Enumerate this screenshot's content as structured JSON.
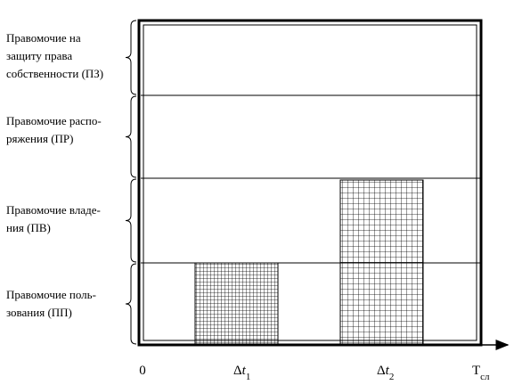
{
  "rows": [
    {
      "lines": [
        "Правомочие на",
        "защиту права",
        "собственности (ПЗ)"
      ]
    },
    {
      "lines": [
        "Правомочие распо-",
        "ряжения  (ПР)"
      ]
    },
    {
      "lines": [
        "Правомочие владе-",
        "ния (ПВ)"
      ]
    },
    {
      "lines": [
        "Правомочие поль-",
        "зования (ПП)"
      ]
    }
  ],
  "axis": {
    "origin": "0",
    "labels": [
      {
        "base": "Δ",
        "var": "t",
        "sub": "1"
      },
      {
        "base": "Δ",
        "var": "t",
        "sub": "2"
      }
    ],
    "end": {
      "base": "T",
      "sub": "сл"
    }
  }
}
